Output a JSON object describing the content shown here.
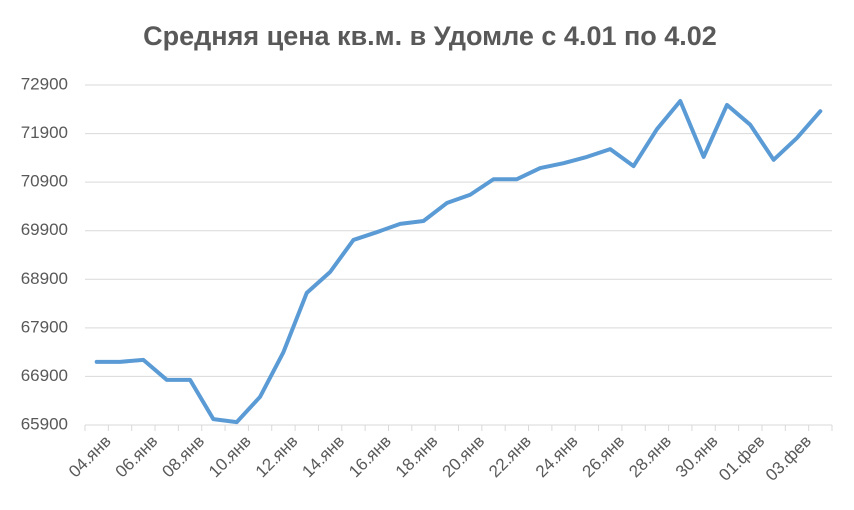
{
  "chart_data": {
    "type": "line",
    "title": "Средняя цена кв.м. в Удомле с 4.01 по 4.02",
    "categories": [
      "04.янв",
      null,
      "06.янв",
      null,
      "08.янв",
      null,
      "10.янв",
      null,
      "12.янв",
      null,
      "14.янв",
      null,
      "16.янв",
      null,
      "18.янв",
      null,
      "20.янв",
      null,
      "22.янв",
      null,
      "24.янв",
      null,
      "26.янв",
      null,
      "28.янв",
      null,
      "30.янв",
      null,
      "01.фев",
      null,
      "03.фев",
      null
    ],
    "series": [
      {
        "name": "Средняя цена",
        "color": "#5b9bd5",
        "values": [
          67200,
          67200,
          67240,
          66830,
          66830,
          66020,
          65960,
          66480,
          67400,
          68620,
          69050,
          69710,
          69870,
          70040,
          70100,
          70470,
          70640,
          70960,
          70960,
          71190,
          71290,
          71420,
          71580,
          71230,
          71990,
          72570,
          71420,
          72490,
          72080,
          71360,
          71810,
          72360
        ]
      }
    ],
    "ylim": [
      65900,
      72900
    ],
    "yticks": [
      65900,
      66900,
      67900,
      68900,
      69900,
      70900,
      71900,
      72900
    ],
    "grid": true
  }
}
